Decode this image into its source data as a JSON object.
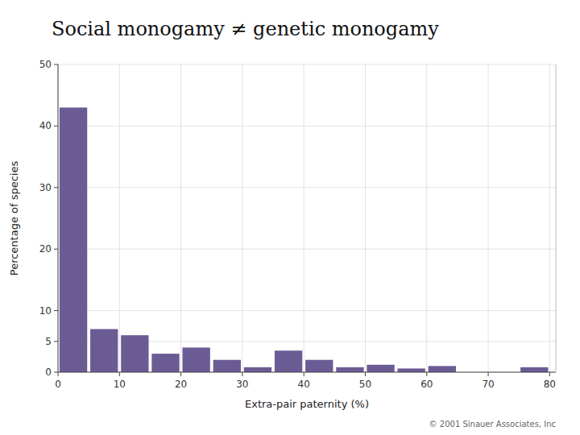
{
  "chart_data": {
    "type": "bar",
    "title": "Social monogamy ≠ genetic monogamy",
    "xlabel": "Extra-pair paternity (%)",
    "ylabel": "Percentage of species",
    "x": [
      2.5,
      7.5,
      12.5,
      17.5,
      22.5,
      27.5,
      32.5,
      37.5,
      42.5,
      47.5,
      52.5,
      57.5,
      62.5,
      67.5,
      72.5,
      77.5
    ],
    "values": [
      43,
      7,
      6,
      3,
      4,
      2,
      0.8,
      3.5,
      2,
      0.8,
      1.2,
      0.6,
      1,
      0,
      0,
      0.8
    ],
    "color": "#6b5b95",
    "xlim": [
      0,
      81
    ],
    "xticks": [
      0,
      10,
      20,
      30,
      40,
      50,
      60,
      70,
      80
    ],
    "ylim": [
      0,
      50
    ],
    "yticks": [
      0,
      5,
      10,
      20,
      30,
      40,
      50
    ],
    "grid": true,
    "annotations": [
      "© 2001 Sinauer Associates, Inc"
    ]
  }
}
